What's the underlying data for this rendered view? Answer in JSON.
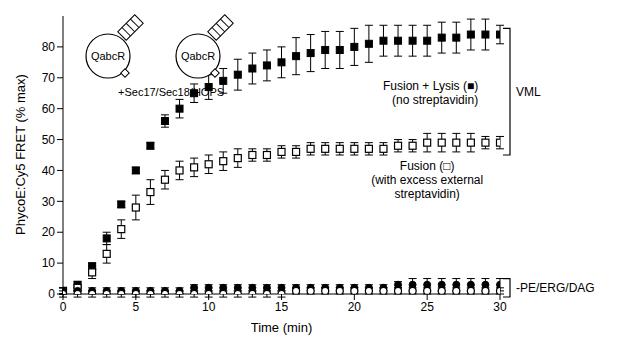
{
  "chart_data": {
    "type": "scatter",
    "x_label": "Time (min)",
    "y_label": "PhycoE:Cy5 FRET (% max)",
    "x": [
      0,
      1,
      2,
      3,
      4,
      5,
      6,
      7,
      8,
      9,
      10,
      11,
      12,
      13,
      14,
      15,
      16,
      17,
      18,
      19,
      20,
      21,
      22,
      23,
      24,
      25,
      26,
      27,
      28,
      29,
      30
    ],
    "xlim": [
      0,
      30
    ],
    "xticks": [
      0,
      5,
      10,
      15,
      20,
      25,
      30
    ],
    "ylim": [
      0,
      90
    ],
    "yticks": [
      0,
      10,
      20,
      30,
      40,
      50,
      60,
      70,
      80
    ],
    "series": [
      {
        "marker": "square",
        "color": "#000000",
        "values": [
          1,
          3,
          9,
          18,
          29,
          40,
          48,
          56,
          60,
          65,
          67,
          69,
          71,
          73,
          74,
          75,
          77,
          78,
          79,
          79,
          80,
          81,
          82,
          82,
          82,
          82,
          83,
          83,
          84,
          84,
          84
        ],
        "errors": [
          1,
          1,
          1,
          2,
          1,
          1,
          1,
          2,
          3,
          3,
          4,
          4,
          5,
          5,
          5,
          5,
          6,
          6,
          6,
          6,
          6,
          6,
          5,
          5,
          5,
          5,
          5,
          5,
          5,
          5,
          3
        ]
      },
      {
        "marker": "open_square",
        "color": "#000000",
        "values": [
          1,
          2,
          7,
          13,
          21,
          28,
          33,
          37,
          40,
          41,
          42,
          43,
          44,
          45,
          45,
          46,
          46,
          47,
          47,
          47,
          47,
          47,
          47,
          48,
          48,
          49,
          49,
          49,
          49,
          49,
          49
        ],
        "errors": [
          1,
          1,
          2,
          3,
          3,
          4,
          4,
          3,
          3,
          3,
          3,
          3,
          3,
          2,
          2,
          2,
          2,
          2,
          2,
          2,
          2,
          2,
          2,
          2,
          2,
          3,
          3,
          3,
          3,
          2,
          2
        ]
      },
      {
        "marker": "circle",
        "color": "#000000",
        "values": [
          1,
          1,
          1,
          1,
          1,
          1,
          1,
          1,
          1,
          2,
          2,
          2,
          2,
          2,
          2,
          2,
          2,
          2,
          2,
          2,
          2,
          2,
          2,
          3,
          3,
          3,
          3,
          3,
          3,
          3,
          3
        ],
        "errors": [
          1,
          1,
          1,
          1,
          1,
          1,
          1,
          1,
          1,
          1,
          1,
          1,
          1,
          1,
          1,
          1,
          1,
          1,
          1,
          1,
          1,
          1,
          1,
          1,
          2,
          2,
          2,
          2,
          2,
          2,
          2
        ]
      },
      {
        "marker": "open_circle",
        "color": "#000000",
        "values": [
          0,
          0,
          0,
          0,
          0,
          0,
          0,
          0,
          0,
          0,
          0,
          0,
          0,
          0,
          0,
          0,
          1,
          1,
          1,
          1,
          1,
          1,
          1,
          1,
          1,
          1,
          1,
          1,
          1,
          1,
          1
        ],
        "errors": [
          1,
          1,
          1,
          1,
          1,
          1,
          1,
          1,
          1,
          1,
          1,
          1,
          1,
          1,
          1,
          1,
          1,
          1,
          1,
          1,
          1,
          1,
          1,
          1,
          1,
          1,
          1,
          1,
          1,
          1,
          1
        ]
      }
    ],
    "annotations": [
      "Fusion + Lysis (■)",
      "(no streptavidin)",
      "Fusion (□)",
      "(with excess external",
      "streptavidin)",
      "VML",
      "-PE/ERG/DAG"
    ],
    "diagram_labels": [
      "QabcR",
      "QabcR",
      "+Sec17/Sec18/HOPS"
    ]
  }
}
